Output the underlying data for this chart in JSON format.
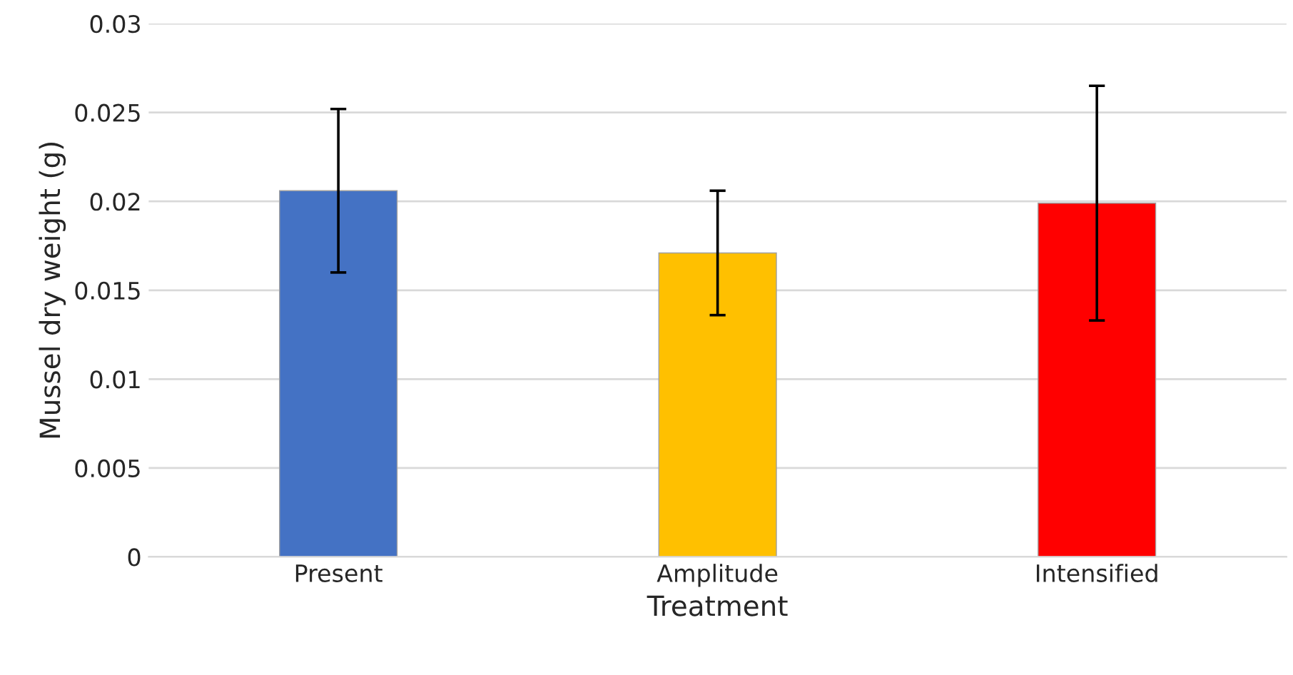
{
  "chart_data": {
    "type": "bar",
    "xlabel": "Treatment",
    "ylabel": "Mussel dry weight (g)",
    "categories": [
      "Present",
      "Amplitude",
      "Intensified"
    ],
    "values": [
      0.0206,
      0.0171,
      0.0199
    ],
    "colors": [
      "#4472c4",
      "#ffc000",
      "#ff0000"
    ],
    "errors": [
      0.0046,
      0.0035,
      0.0066
    ],
    "ylim": [
      0,
      0.03
    ],
    "yticks": [
      0,
      0.005,
      0.01,
      0.015,
      0.02,
      0.025,
      0.03
    ],
    "grid": "y",
    "legend": false
  }
}
